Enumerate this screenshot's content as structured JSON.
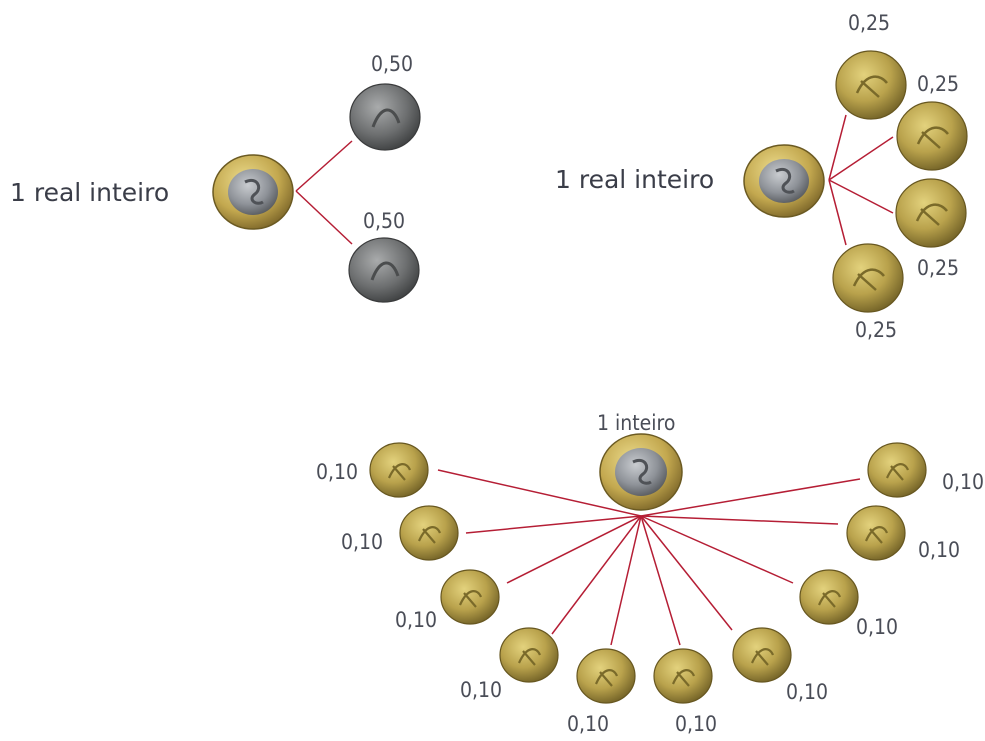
{
  "panel_halves": {
    "whole_label": "1 real inteiro",
    "part_labels": [
      "0,50",
      "0,50"
    ],
    "whole_coin": "bimetal-1-real-coin",
    "part_coin": "silver-50-centavos-coin"
  },
  "panel_quarters": {
    "whole_label": "1 real inteiro",
    "part_labels": [
      "0,25",
      "0,25",
      "0,25",
      "0,25"
    ],
    "whole_coin": "bimetal-1-real-coin",
    "part_coin": "gold-25-centavos-coin"
  },
  "panel_tenths": {
    "whole_label": "1 inteiro",
    "part_labels": [
      "0,10",
      "0,10",
      "0,10",
      "0,10",
      "0,10",
      "0,10",
      "0,10",
      "0,10",
      "0,10",
      "0,10"
    ],
    "whole_coin": "bimetal-1-real-coin",
    "part_coin": "gold-10-centavos-coin"
  },
  "colors": {
    "link_line": "#b51e35",
    "label_text": "#4a4d57",
    "gold_coin": "#b9a24c",
    "silver_coin": "#6d6f70"
  }
}
